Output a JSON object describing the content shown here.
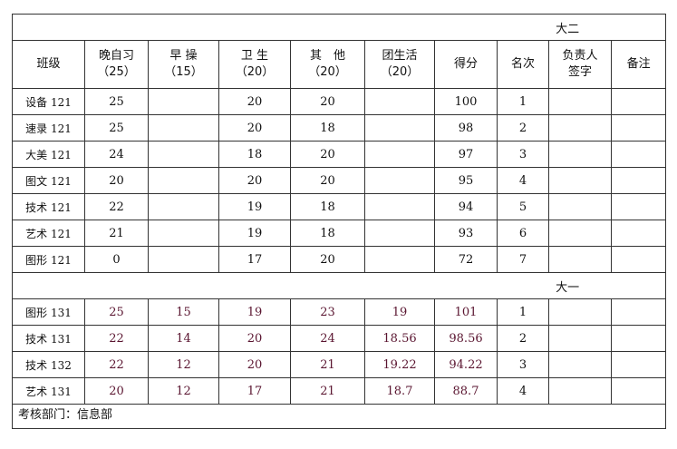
{
  "section_top": "大二",
  "section_bottom": "大一",
  "headers": [
    [
      "班级",
      ""
    ],
    [
      "晚自习",
      "（25）"
    ],
    [
      "早 操",
      "（15）"
    ],
    [
      "卫 生",
      "（20）"
    ],
    [
      "其　他",
      "（20）"
    ],
    [
      "团生活",
      "（20）"
    ],
    [
      "得分",
      ""
    ],
    [
      "名次",
      ""
    ],
    [
      "负责人",
      "签字"
    ],
    [
      "备注",
      ""
    ]
  ],
  "rows_top": [
    [
      "设备 121",
      "25",
      "",
      "20",
      "20",
      "",
      "100",
      "1",
      "",
      ""
    ],
    [
      "速录 121",
      "25",
      "",
      "20",
      "18",
      "",
      "98",
      "2",
      "",
      ""
    ],
    [
      "大美 121",
      "24",
      "",
      "18",
      "20",
      "",
      "97",
      "3",
      "",
      ""
    ],
    [
      "图文 121",
      "20",
      "",
      "20",
      "20",
      "",
      "95",
      "4",
      "",
      ""
    ],
    [
      "技术 121",
      "22",
      "",
      "19",
      "18",
      "",
      "94",
      "5",
      "",
      ""
    ],
    [
      "艺术 121",
      "21",
      "",
      "19",
      "18",
      "",
      "93",
      "6",
      "",
      ""
    ],
    [
      "图形 121",
      "0",
      "",
      "17",
      "20",
      "",
      "72",
      "7",
      "",
      ""
    ]
  ],
  "rows_bottom": [
    [
      "图形 131",
      "25",
      "15",
      "19",
      "23",
      "19",
      "101",
      "1",
      "",
      ""
    ],
    [
      "技术 131",
      "22",
      "14",
      "20",
      "24",
      "18.56",
      "98.56",
      "2",
      "",
      ""
    ],
    [
      "技术 132",
      "22",
      "12",
      "20",
      "21",
      "19.22",
      "94.22",
      "3",
      "",
      ""
    ],
    [
      "艺术 131",
      "20",
      "12",
      "17",
      "21",
      "18.7",
      "88.7",
      "4",
      "",
      ""
    ]
  ],
  "footer": "考核部门：信息部"
}
